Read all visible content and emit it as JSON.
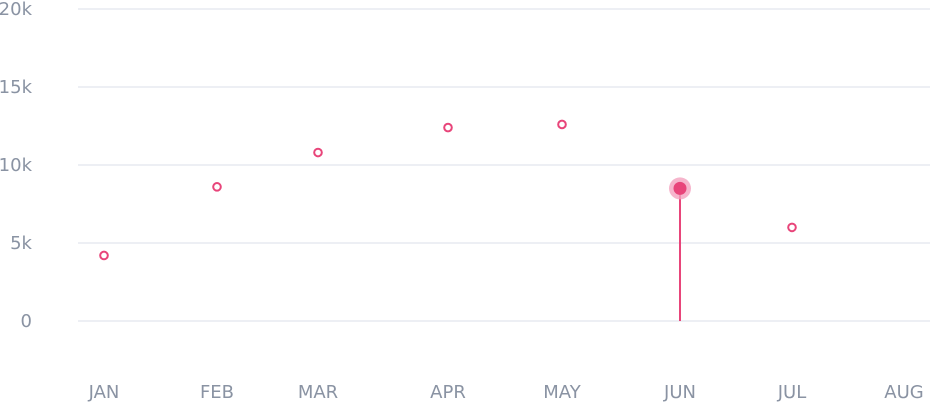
{
  "chart_data": {
    "type": "scatter",
    "title": "",
    "xlabel": "",
    "ylabel": "",
    "categories": [
      "JAN",
      "FEB",
      "MAR",
      "APR",
      "MAY",
      "JUN",
      "JUL",
      "AUG"
    ],
    "y_ticks": [
      "0",
      "5k",
      "10k",
      "15k",
      "20k"
    ],
    "y_tick_values": [
      0,
      5000,
      10000,
      15000,
      20000
    ],
    "ylim": [
      0,
      20000
    ],
    "grid": true,
    "legend": "none",
    "series": [
      {
        "values": [
          4200,
          8600,
          10800,
          12400,
          12600,
          8500,
          6000,
          null
        ]
      }
    ],
    "highlight": {
      "category": "JUN",
      "value": 8500
    },
    "colors": {
      "accent": "#e8457a",
      "highlight_halo": "#f4a3bf",
      "grid": "#e7eaf0",
      "text": "#8a93a3"
    }
  }
}
